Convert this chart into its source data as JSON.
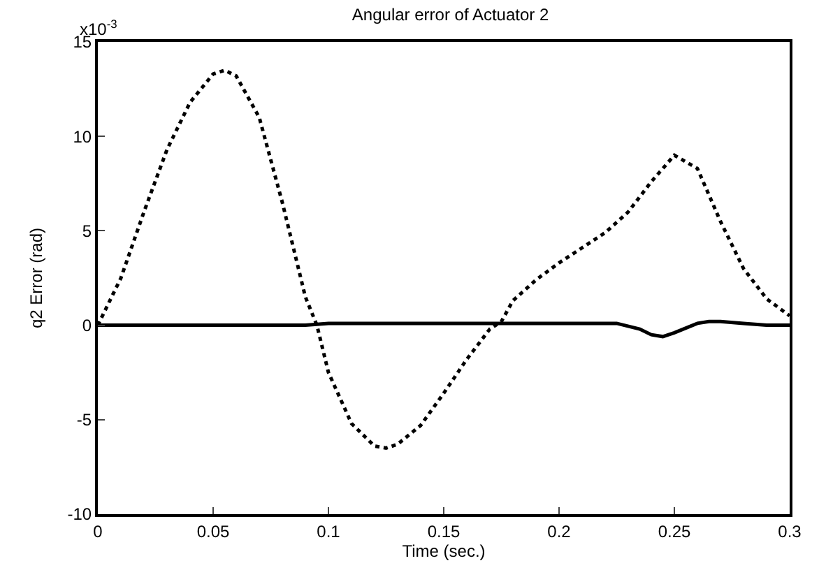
{
  "chart_data": {
    "type": "line",
    "title": "Angular error of Actuator 2",
    "xlabel": "Time (sec.)",
    "ylabel": "q2 Error (rad)",
    "annotations": [
      "x10$^{-3}$"
    ],
    "xlim": [
      0,
      0.3
    ],
    "xticks": [
      0,
      0.05,
      0.1,
      0.15,
      0.2,
      0.25,
      0.3
    ],
    "ylim": [
      -10,
      15
    ],
    "yticks": [
      -10,
      -5,
      0,
      5,
      10,
      15
    ],
    "series": [
      {
        "color": "#000000",
        "line_style": "dotted",
        "x": [
          0,
          0.01,
          0.02,
          0.03,
          0.04,
          0.05,
          0.055,
          0.06,
          0.07,
          0.08,
          0.09,
          0.095,
          0.1,
          0.11,
          0.12,
          0.125,
          0.13,
          0.14,
          0.15,
          0.16,
          0.17,
          0.175,
          0.18,
          0.19,
          0.2,
          0.21,
          0.22,
          0.23,
          0.24,
          0.25,
          0.26,
          0.27,
          0.28,
          0.29,
          0.3
        ],
        "values": [
          0,
          2.5,
          6,
          9.3,
          11.8,
          13.3,
          13.5,
          13.2,
          11,
          6.5,
          1.5,
          0,
          -2.5,
          -5.2,
          -6.4,
          -6.5,
          -6.3,
          -5.3,
          -3.6,
          -1.8,
          -0.2,
          0.2,
          1.3,
          2.4,
          3.3,
          4.1,
          4.9,
          6,
          7.6,
          9,
          8.3,
          5.5,
          3,
          1.4,
          0.5
        ]
      },
      {
        "color": "#000000",
        "line_style": "solid",
        "x": [
          0,
          0.09,
          0.1,
          0.2,
          0.225,
          0.235,
          0.24,
          0.245,
          0.25,
          0.26,
          0.265,
          0.27,
          0.28,
          0.29,
          0.3
        ],
        "values": [
          0,
          0,
          0.1,
          0.1,
          0.1,
          -0.2,
          -0.5,
          -0.6,
          -0.4,
          0.1,
          0.2,
          0.2,
          0.1,
          0,
          0
        ]
      }
    ]
  }
}
